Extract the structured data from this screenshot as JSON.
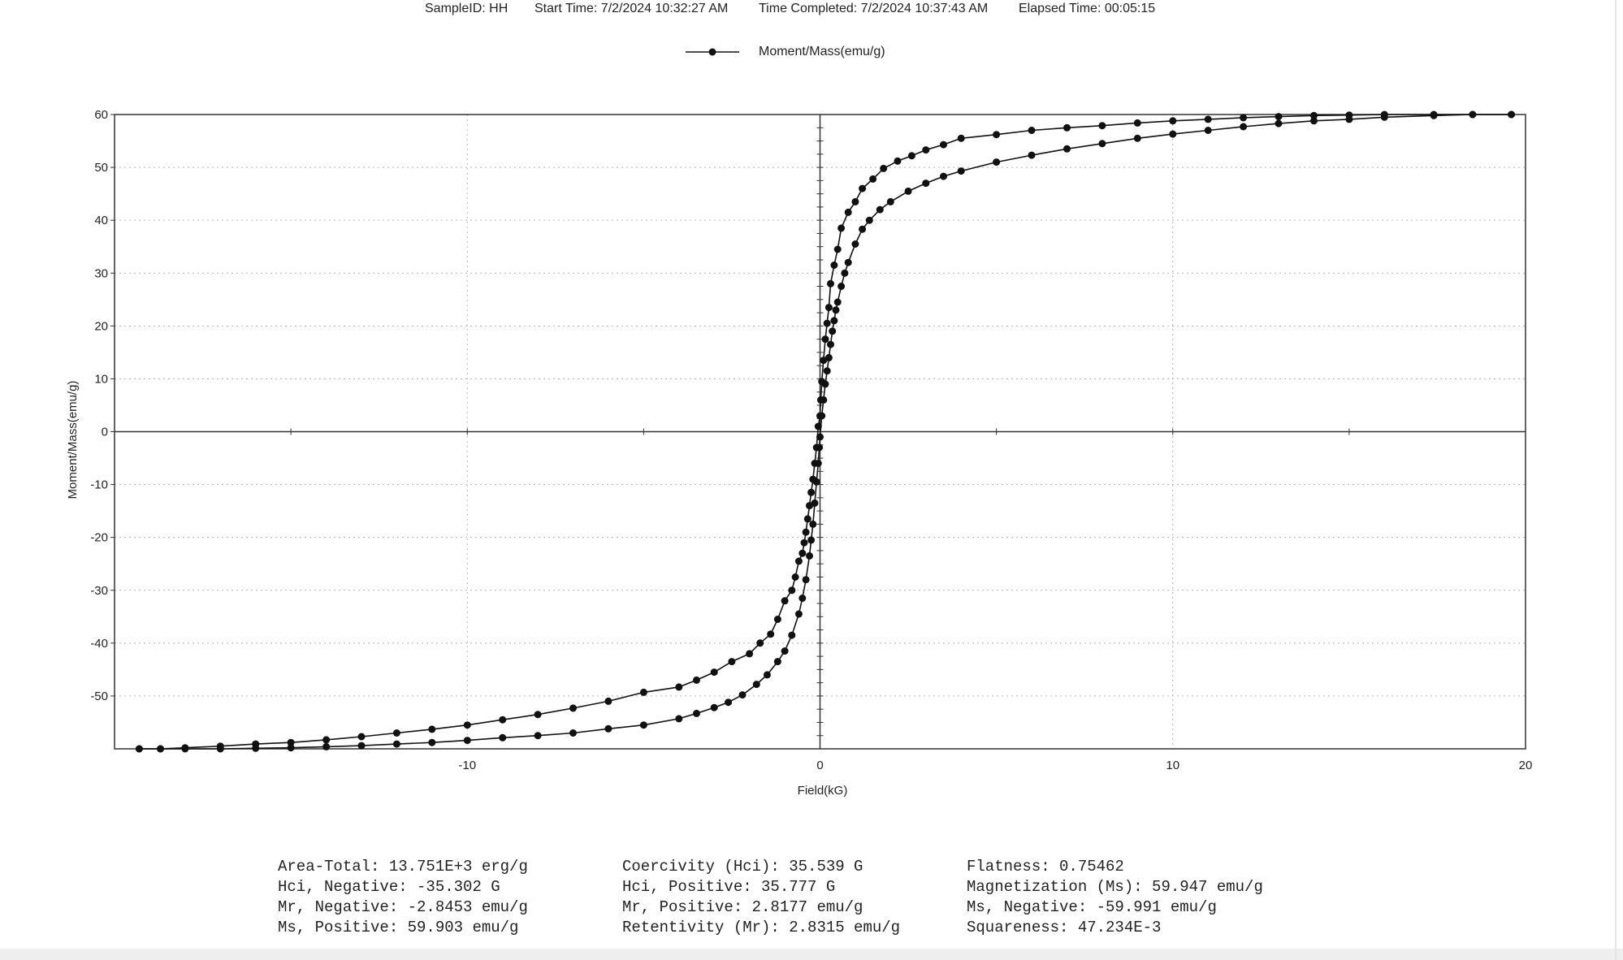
{
  "header": {
    "sample": "SampleID: HH",
    "start": "Start Time: 7/2/2024 10:32:27 AM",
    "completed": "Time Completed: 7/2/2024 10:37:43 AM",
    "elapsed": "Elapsed Time:  00:05:15"
  },
  "stats": [
    [
      "Area-Total: 13.751E+3 erg/g",
      "Coercivity (Hci): 35.539 G",
      "Flatness: 0.75462"
    ],
    [
      "Hci, Negative: -35.302 G",
      "Hci, Positive: 35.777 G",
      "Magnetization (Ms): 59.947 emu/g"
    ],
    [
      "Mr, Negative: -2.8453 emu/g",
      "Mr, Positive: 2.8177 emu/g",
      "Ms, Negative: -59.991 emu/g"
    ],
    [
      "Ms, Positive: 59.903 emu/g",
      "Retentivity (Mr): 2.8315 emu/g",
      "Squareness: 47.234E-3"
    ]
  ],
  "chart_data": {
    "type": "line",
    "title": "",
    "xlabel": "Field(kG)",
    "ylabel": "Moment/Mass(emu/g)",
    "xlim": [
      -20,
      20
    ],
    "ylim": [
      -60,
      60
    ],
    "x_ticks": [
      -10,
      0,
      10,
      20
    ],
    "y_ticks": [
      60,
      50,
      40,
      30,
      20,
      10,
      0,
      -10,
      -20,
      -30,
      -40,
      -50
    ],
    "grid": true,
    "legend": "top-center",
    "color": "#111111",
    "series": [
      {
        "name": "Moment/Mass(emu/g)",
        "x": [
          19.6,
          18.5,
          17.4,
          16.0,
          15.0,
          14.0,
          13.0,
          12.0,
          11.0,
          10.0,
          9.0,
          8.0,
          7.0,
          6.0,
          5.0,
          4.0,
          3.5,
          3.0,
          2.5,
          2.0,
          1.7,
          1.4,
          1.2,
          1.0,
          0.8,
          0.7,
          0.6,
          0.5,
          0.45,
          0.4,
          0.35,
          0.3,
          0.25,
          0.2,
          0.15,
          0.1,
          0.05,
          0.0,
          -0.02,
          -0.05,
          -0.1,
          -0.15,
          -0.2,
          -0.25,
          -0.3,
          -0.4,
          -0.5,
          -0.6,
          -0.8,
          -1.0,
          -1.2,
          -1.5,
          -1.8,
          -2.2,
          -2.6,
          -3.0,
          -3.5,
          -4.0,
          -5.0,
          -6.0,
          -7.0,
          -8.0,
          -9.0,
          -10.0,
          -11.0,
          -12.0,
          -13.0,
          -14.0,
          -15.0,
          -16.0,
          -17.0,
          -18.0,
          -18.7,
          -19.3
        ],
        "y": [
          60.0,
          60.0,
          59.8,
          59.5,
          59.1,
          58.8,
          58.3,
          57.7,
          57.0,
          56.3,
          55.5,
          54.5,
          53.5,
          52.3,
          51.0,
          49.3,
          48.3,
          47.0,
          45.5,
          43.5,
          42.0,
          40.0,
          38.3,
          35.5,
          32.0,
          30.0,
          27.5,
          24.5,
          23.0,
          21.0,
          19.0,
          16.5,
          14.0,
          11.5,
          9.0,
          6.0,
          3.0,
          -1.0,
          -3.0,
          -6.0,
          -9.5,
          -13.5,
          -17.5,
          -20.5,
          -23.5,
          -28.0,
          -31.5,
          -34.5,
          -38.5,
          -41.5,
          -43.5,
          -46.0,
          -47.8,
          -49.8,
          -51.2,
          -52.2,
          -53.3,
          -54.3,
          -55.5,
          -56.2,
          -57.0,
          -57.5,
          -57.9,
          -58.4,
          -58.8,
          -59.1,
          -59.4,
          -59.6,
          -59.8,
          -59.9,
          -60.0,
          -60.0,
          -60.0,
          -60.0
        ]
      },
      {
        "name": "",
        "x": [
          -19.3,
          -18.7,
          -18.0,
          -17.0,
          -16.0,
          -15.0,
          -14.0,
          -13.0,
          -12.0,
          -11.0,
          -10.0,
          -9.0,
          -8.0,
          -7.0,
          -6.0,
          -5.0,
          -4.0,
          -3.5,
          -3.0,
          -2.5,
          -2.0,
          -1.7,
          -1.4,
          -1.2,
          -1.0,
          -0.8,
          -0.7,
          -0.6,
          -0.5,
          -0.45,
          -0.4,
          -0.35,
          -0.3,
          -0.25,
          -0.2,
          -0.15,
          -0.1,
          -0.05,
          0.0,
          0.02,
          0.05,
          0.1,
          0.15,
          0.2,
          0.25,
          0.3,
          0.4,
          0.5,
          0.6,
          0.8,
          1.0,
          1.2,
          1.5,
          1.8,
          2.2,
          2.6,
          3.0,
          3.5,
          4.0,
          5.0,
          6.0,
          7.0,
          8.0,
          9.0,
          10.0,
          11.0,
          12.0,
          13.0,
          14.0,
          15.0,
          16.0,
          17.4,
          18.5,
          19.6
        ],
        "y": [
          -60.0,
          -60.0,
          -59.8,
          -59.5,
          -59.1,
          -58.8,
          -58.3,
          -57.7,
          -57.0,
          -56.3,
          -55.5,
          -54.5,
          -53.5,
          -52.3,
          -51.0,
          -49.3,
          -48.3,
          -47.0,
          -45.5,
          -43.5,
          -42.0,
          -40.0,
          -38.3,
          -35.5,
          -32.0,
          -30.0,
          -27.5,
          -24.5,
          -23.0,
          -21.0,
          -19.0,
          -16.5,
          -14.0,
          -11.5,
          -9.0,
          -6.0,
          -3.0,
          1.0,
          3.0,
          6.0,
          9.5,
          13.5,
          17.5,
          20.5,
          23.5,
          28.0,
          31.5,
          34.5,
          38.5,
          41.5,
          43.5,
          46.0,
          47.8,
          49.8,
          51.2,
          52.2,
          53.3,
          54.3,
          55.5,
          56.2,
          57.0,
          57.5,
          57.9,
          58.4,
          58.8,
          59.1,
          59.4,
          59.6,
          59.8,
          59.9,
          60.0,
          60.0,
          60.0,
          60.0
        ]
      }
    ]
  }
}
